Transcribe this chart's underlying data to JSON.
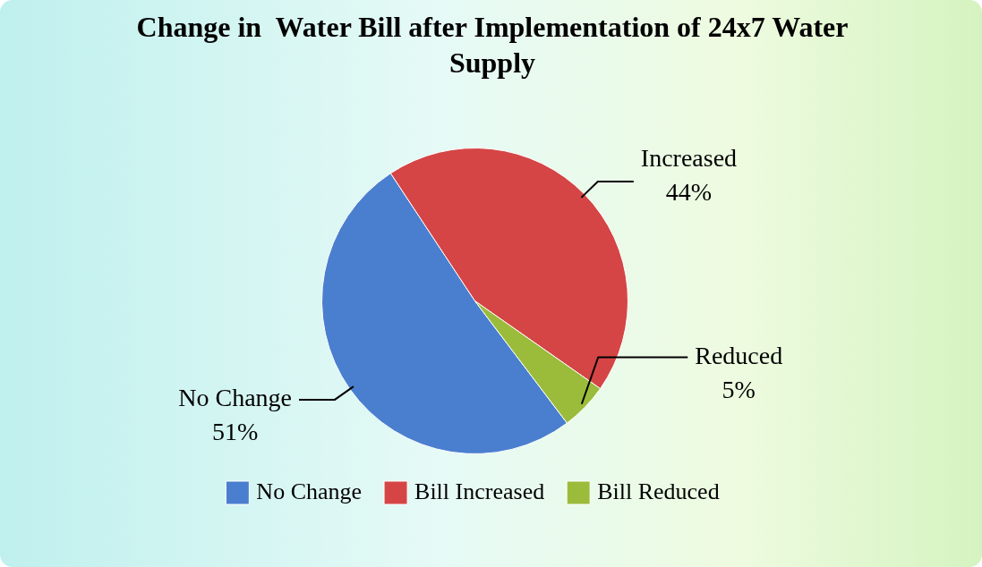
{
  "chart_data": {
    "type": "pie",
    "title": "Change in  Water Bill after Implementation of 24x7 Water Supply",
    "categories": [
      "No Change",
      "Bill Increased",
      "Bill Reduced"
    ],
    "values": [
      51,
      44,
      5
    ],
    "colors": [
      "#4a7fcf",
      "#d54545",
      "#9bbb3b"
    ],
    "value_labels": [
      "No Change\n51%",
      "Increased\n44%",
      "Reduced\n5%"
    ],
    "legend": "bottom"
  }
}
